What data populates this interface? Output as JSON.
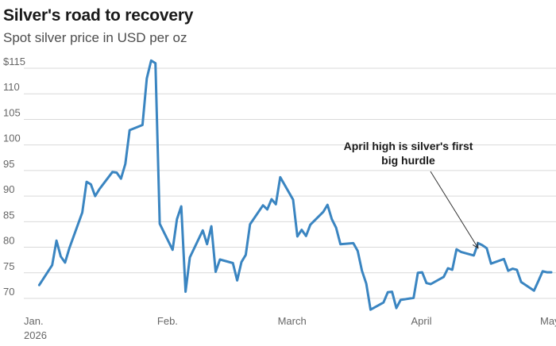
{
  "header": {
    "title": "Silver's road to recovery",
    "subtitle": "Spot silver price in USD per oz"
  },
  "chart_data": {
    "type": "line",
    "title": "Silver's road to recovery",
    "subtitle": "Spot silver price in USD per oz",
    "xlabel": "",
    "ylabel": "",
    "ylim": [
      67,
      117
    ],
    "grid": true,
    "colors": {
      "series": "#3a85c1",
      "grid": "#d9d9d9",
      "text": "#666666"
    },
    "y_ticks": [
      {
        "value": 115,
        "label": "$115"
      },
      {
        "value": 110,
        "label": "110"
      },
      {
        "value": 105,
        "label": "105"
      },
      {
        "value": 100,
        "label": "100"
      },
      {
        "value": 95,
        "label": "95"
      },
      {
        "value": 90,
        "label": "90"
      },
      {
        "value": 85,
        "label": "85"
      },
      {
        "value": 80,
        "label": "80"
      },
      {
        "value": 75,
        "label": "75"
      },
      {
        "value": 70,
        "label": "70"
      }
    ],
    "x_ticks": [
      {
        "date": "2026-01-01",
        "label": "Jan.",
        "sublabel": "2026"
      },
      {
        "date": "2026-02-01",
        "label": "Feb.",
        "sublabel": ""
      },
      {
        "date": "2026-03-01",
        "label": "March",
        "sublabel": ""
      },
      {
        "date": "2026-04-01",
        "label": "April",
        "sublabel": ""
      },
      {
        "date": "2026-05-01",
        "label": "May",
        "sublabel": ""
      }
    ],
    "series": [
      {
        "x": [
          "2026-01-02",
          "2026-01-05",
          "2026-01-06",
          "2026-01-07",
          "2026-01-08",
          "2026-01-09",
          "2026-01-12",
          "2026-01-13",
          "2026-01-14",
          "2026-01-15",
          "2026-01-16",
          "2026-01-19",
          "2026-01-20",
          "2026-01-21",
          "2026-01-22",
          "2026-01-23",
          "2026-01-26",
          "2026-01-27",
          "2026-01-28",
          "2026-01-29",
          "2026-01-30",
          "2026-02-02",
          "2026-02-03",
          "2026-02-04",
          "2026-02-05",
          "2026-02-06",
          "2026-02-09",
          "2026-02-10",
          "2026-02-11",
          "2026-02-12",
          "2026-02-13",
          "2026-02-16",
          "2026-02-17",
          "2026-02-18",
          "2026-02-19",
          "2026-02-20",
          "2026-02-23",
          "2026-02-24",
          "2026-02-25",
          "2026-02-26",
          "2026-02-27",
          "2026-03-02",
          "2026-03-03",
          "2026-03-04",
          "2026-03-05",
          "2026-03-06",
          "2026-03-09",
          "2026-03-10",
          "2026-03-11",
          "2026-03-12",
          "2026-03-13",
          "2026-03-16",
          "2026-03-17",
          "2026-03-18",
          "2026-03-19",
          "2026-03-20",
          "2026-03-23",
          "2026-03-24",
          "2026-03-25",
          "2026-03-26",
          "2026-03-27",
          "2026-03-30",
          "2026-03-31",
          "2026-04-01",
          "2026-04-02",
          "2026-04-03",
          "2026-04-06",
          "2026-04-07",
          "2026-04-08",
          "2026-04-09",
          "2026-04-10",
          "2026-04-13",
          "2026-04-14",
          "2026-04-15",
          "2026-04-16",
          "2026-04-17",
          "2026-04-20",
          "2026-04-21",
          "2026-04-22",
          "2026-04-23",
          "2026-04-24",
          "2026-04-27",
          "2026-04-28",
          "2026-04-29",
          "2026-04-30",
          "2026-05-01"
        ],
        "y": [
          72.6,
          76.5,
          81.3,
          78.2,
          77.0,
          79.8,
          86.8,
          92.8,
          92.3,
          90.0,
          91.4,
          94.7,
          94.6,
          93.4,
          96.3,
          102.9,
          103.9,
          113.0,
          116.5,
          116.0,
          84.6,
          79.5,
          85.5,
          88.0,
          71.3,
          78.0,
          83.3,
          80.6,
          84.1,
          75.2,
          77.6,
          76.9,
          73.5,
          77.1,
          78.5,
          84.5,
          88.2,
          87.4,
          89.4,
          88.4,
          93.7,
          89.3,
          82.1,
          83.4,
          82.2,
          84.4,
          86.9,
          88.3,
          85.5,
          83.8,
          80.6,
          80.8,
          79.3,
          75.4,
          72.9,
          67.8,
          69.2,
          71.2,
          71.3,
          68.1,
          69.7,
          70.1,
          75.0,
          75.1,
          73.0,
          72.8,
          74.2,
          75.9,
          75.6,
          79.6,
          79.1,
          78.4,
          80.8,
          80.4,
          79.8,
          76.8,
          77.7,
          75.4,
          75.8,
          75.6,
          73.2,
          71.5,
          73.4,
          75.3,
          75.1,
          75.1
        ]
      }
    ],
    "annotations": [
      {
        "lines": [
          "April high is silver's first",
          "big hurdle"
        ],
        "target": {
          "x": "2026-04-14",
          "y": 78.9
        }
      }
    ]
  }
}
